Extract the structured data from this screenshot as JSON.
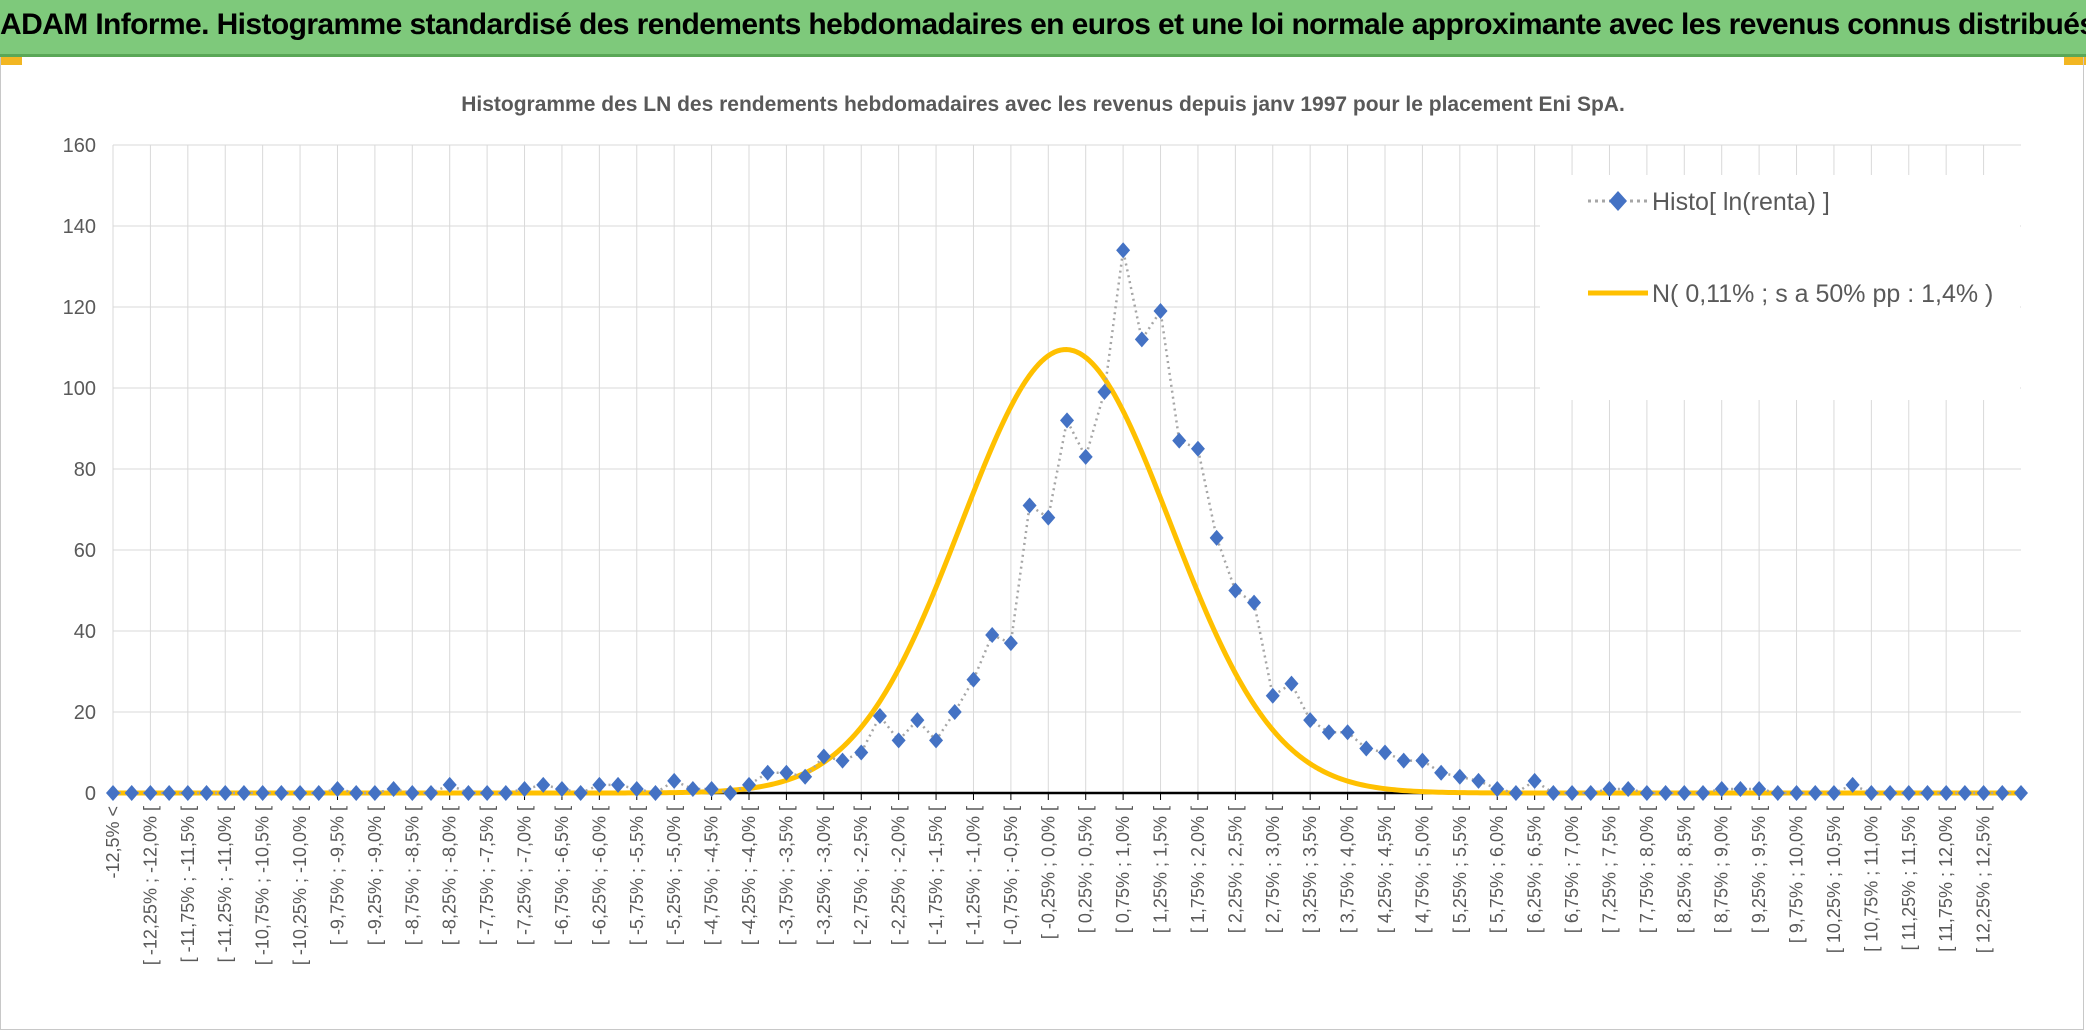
{
  "banner": {
    "title": "ADAM Informe. Histogramme standardisé des rendements hebdomadaires en euros et une loi normale approximante avec les revenus connus distribués"
  },
  "colors": {
    "banner_bg": "#7ec97b",
    "series_marker": "#4472c4",
    "series_line": "#a6a6a6",
    "normal_curve": "#ffc000",
    "grid": "#d9d9d9"
  },
  "chart_data": {
    "type": "line",
    "title": "Histogramme des LN des rendements hebdomadaires avec les revenus depuis janv 1997 pour le placement Eni SpA.",
    "xlabel": "",
    "ylabel": "",
    "ylim": [
      0,
      160
    ],
    "yticks": [
      0,
      20,
      40,
      60,
      80,
      100,
      120,
      140,
      160
    ],
    "grid": true,
    "legend_position": "top-right",
    "categories": [
      "-12,5% <",
      "[ -12,25% ; -12,0% [",
      "[ -11,75% ; -11,5% [",
      "[ -11,25% ; -11,0% [",
      "[ -10,75% ; -10,5% [",
      "[ -10,25% ; -10,0% [",
      "[ -9,75% ; -9,5% [",
      "[ -9,25% ; -9,0% [",
      "[ -8,75% ; -8,5% [",
      "[ -8,25% ; -8,0% [",
      "[ -7,75% ; -7,5% [",
      "[ -7,25% ; -7,0% [",
      "[ -6,75% ; -6,5% [",
      "[ -6,25% ; -6,0% [",
      "[ -5,75% ; -5,5% [",
      "[ -5,25% ; -5,0% [",
      "[ -4,75% ; -4,5% [",
      "[ -4,25% ; -4,0% [",
      "[ -3,75% ; -3,5% [",
      "[ -3,25% ; -3,0% [",
      "[ -2,75% ; -2,5% [",
      "[ -2,25% ; -2,0% [",
      "[ -1,75% ; -1,5% [",
      "[ -1,25% ; -1,0% [",
      "[ -0,75% ; -0,5% [",
      "[ -0,25% ; 0,0% [",
      "[ 0,25% ; 0,5% [",
      "[ 0,75% ; 1,0% [",
      "[ 1,25% ; 1,5% [",
      "[ 1,75% ; 2,0% [",
      "[ 2,25% ; 2,5% [",
      "[ 2,75% ; 3,0% [",
      "[ 3,25% ; 3,5% [",
      "[ 3,75% ; 4,0% [",
      "[ 4,25% ; 4,5% [",
      "[ 4,75% ; 5,0% [",
      "[ 5,25% ; 5,5% [",
      "[ 5,75% ; 6,0% [",
      "[ 6,25% ; 6,5% [",
      "[ 6,75% ; 7,0% [",
      "[ 7,25% ; 7,5% [",
      "[ 7,75% ; 8,0% [",
      "[ 8,25% ; 8,5% [",
      "[ 8,75% ; 9,0% [",
      "[ 9,25% ; 9,5% [",
      "[ 9,75% ; 10,0% [",
      "[ 10,25% ; 10,5% [",
      "[ 10,75% ; 11,0% [",
      "[ 11,25% ; 11,5% [",
      "[ 11,75% ; 12,0% [",
      "[ 12,25% ; 12,5% ["
    ],
    "histogram_values": [
      0,
      0,
      0,
      0,
      0,
      0,
      0,
      0,
      0,
      0,
      0,
      0,
      1,
      0,
      0,
      1,
      0,
      0,
      2,
      0,
      0,
      0,
      1,
      2,
      1,
      0,
      2,
      2,
      1,
      0,
      3,
      1,
      1,
      0,
      2,
      5,
      5,
      4,
      9,
      8,
      10,
      19,
      13,
      18,
      13,
      20,
      28,
      39,
      37,
      71,
      68,
      92,
      83,
      99,
      134,
      112,
      119,
      87,
      85,
      63,
      50,
      47,
      24,
      27,
      18,
      15,
      15,
      11,
      10,
      8,
      8,
      5,
      4,
      3,
      1,
      0,
      3,
      0,
      0,
      0,
      1,
      1,
      0,
      0,
      0,
      0,
      1,
      1,
      1,
      0,
      0,
      0,
      0,
      2,
      0,
      0,
      0,
      0,
      0,
      0,
      0,
      0,
      0
    ],
    "normal_peak": 109.5,
    "series": [
      {
        "name": "Histo[ ln(renta) ]",
        "style": "diamond markers, dotted line"
      },
      {
        "name": "N( 0,11% ; s a 50% pp : 1,4% )",
        "style": "solid line",
        "mean_pct": 0.11,
        "sd_pct": 1.4
      }
    ]
  }
}
